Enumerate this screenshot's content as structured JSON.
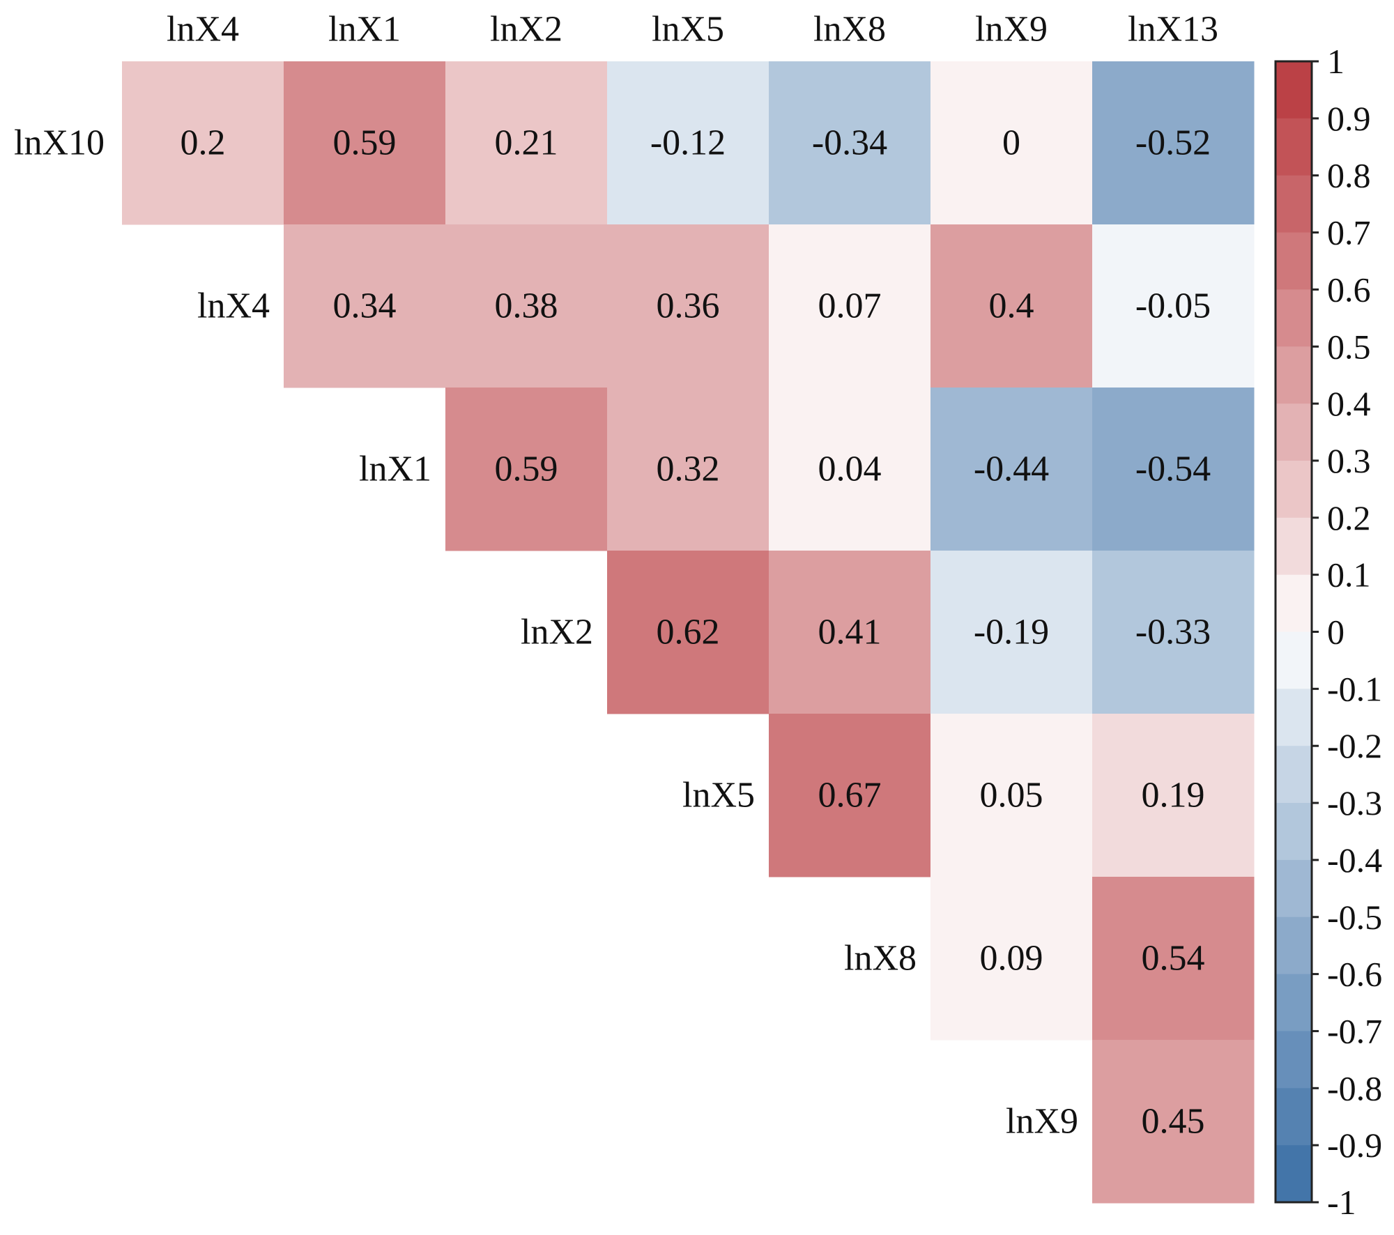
{
  "chart_data": {
    "type": "heatmap",
    "title": "",
    "xlabel": "",
    "ylabel": "",
    "columns": [
      "lnX4",
      "lnX1",
      "lnX2",
      "lnX5",
      "lnX8",
      "lnX9",
      "lnX13"
    ],
    "rows": [
      "lnX10",
      "lnX4",
      "lnX1",
      "lnX2",
      "lnX5",
      "lnX8",
      "lnX9"
    ],
    "values": [
      [
        0.2,
        0.59,
        0.21,
        -0.12,
        -0.34,
        0,
        -0.52
      ],
      [
        null,
        0.34,
        0.38,
        0.36,
        0.07,
        0.4,
        -0.05
      ],
      [
        null,
        null,
        0.59,
        0.32,
        0.04,
        -0.44,
        -0.54
      ],
      [
        null,
        null,
        null,
        0.62,
        0.41,
        -0.19,
        -0.33
      ],
      [
        null,
        null,
        null,
        null,
        0.67,
        0.05,
        0.19
      ],
      [
        null,
        null,
        null,
        null,
        null,
        0.09,
        0.54
      ],
      [
        null,
        null,
        null,
        null,
        null,
        null,
        0.45
      ]
    ],
    "value_labels": [
      [
        "0.2",
        "0.59",
        "0.21",
        "-0.12",
        "-0.34",
        "0",
        "-0.52"
      ],
      [
        null,
        "0.34",
        "0.38",
        "0.36",
        "0.07",
        "0.4",
        "-0.05"
      ],
      [
        null,
        null,
        "0.59",
        "0.32",
        "0.04",
        "-0.44",
        "-0.54"
      ],
      [
        null,
        null,
        null,
        "0.62",
        "0.41",
        "-0.19",
        "-0.33"
      ],
      [
        null,
        null,
        null,
        null,
        "0.67",
        "0.05",
        "0.19"
      ],
      [
        null,
        null,
        null,
        null,
        null,
        "0.09",
        "0.54"
      ],
      [
        null,
        null,
        null,
        null,
        null,
        null,
        "0.45"
      ]
    ],
    "layout": "upper-triangle, row labels placed on the diagonal",
    "colorbar": {
      "min": -1,
      "max": 1,
      "step": 0.1,
      "tick_labels": [
        "1",
        "0.9",
        "0.8",
        "0.7",
        "0.6",
        "0.5",
        "0.4",
        "0.3",
        "0.2",
        "0.1",
        "0",
        "-0.1",
        "-0.2",
        "-0.3",
        "-0.4",
        "-0.5",
        "-0.6",
        "-0.7",
        "-0.8",
        "-0.9",
        "-1"
      ],
      "placement": "right",
      "colors": {
        "negative_end": "#3a6ea5",
        "neutral": "#ffffff",
        "positive_end": "#b8383d"
      }
    },
    "grid": false,
    "legend": "colorbar-right"
  }
}
